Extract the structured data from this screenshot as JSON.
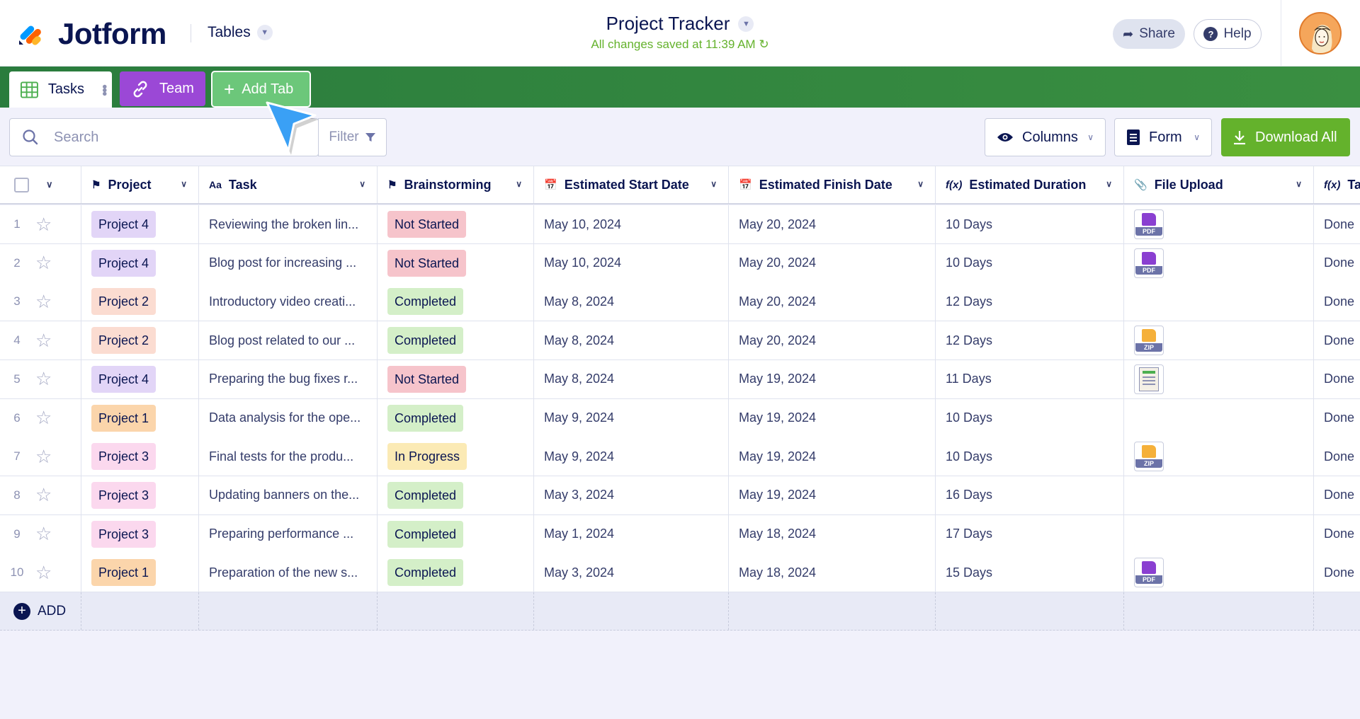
{
  "header": {
    "logo_text": "Jotform",
    "tables_label": "Tables",
    "title": "Project Tracker",
    "saved_status": "All changes saved at 11:39 AM",
    "share_label": "Share",
    "help_label": "Help"
  },
  "tabs": {
    "tasks_label": "Tasks",
    "team_label": "Team",
    "add_label": "Add Tab"
  },
  "toolbar": {
    "search_placeholder": "Search",
    "filter_label": "Filter",
    "columns_label": "Columns",
    "form_label": "Form",
    "download_label": "Download All"
  },
  "columns": {
    "project": "Project",
    "task": "Task",
    "brainstorming": "Brainstorming",
    "start": "Estimated Start Date",
    "finish": "Estimated Finish Date",
    "duration": "Estimated Duration",
    "file": "File Upload",
    "extra": "Ta"
  },
  "rows": [
    {
      "n": "1",
      "project": "Project 4",
      "task": "Reviewing the broken lin...",
      "status": "Not Started",
      "start": "May 10, 2024",
      "finish": "May 20, 2024",
      "duration": "10 Days",
      "file": "PDF",
      "extra": "Done"
    },
    {
      "n": "2",
      "project": "Project 4",
      "task": "Blog post for increasing ...",
      "status": "Not Started",
      "start": "May 10, 2024",
      "finish": "May 20, 2024",
      "duration": "10 Days",
      "file": "PDF",
      "extra": "Done"
    },
    {
      "n": "3",
      "project": "Project 2",
      "task": "Introductory video creati...",
      "status": "Completed",
      "start": "May 8, 2024",
      "finish": "May 20, 2024",
      "duration": "12 Days",
      "file": "",
      "extra": "Done"
    },
    {
      "n": "4",
      "project": "Project 2",
      "task": "Blog post related to our ...",
      "status": "Completed",
      "start": "May 8, 2024",
      "finish": "May 20, 2024",
      "duration": "12 Days",
      "file": "ZIP",
      "extra": "Done"
    },
    {
      "n": "5",
      "project": "Project 4",
      "task": "Preparing the bug fixes r...",
      "status": "Not Started",
      "start": "May 8, 2024",
      "finish": "May 19, 2024",
      "duration": "11 Days",
      "file": "IMG",
      "extra": "Done"
    },
    {
      "n": "6",
      "project": "Project 1",
      "task": "Data analysis for the ope...",
      "status": "Completed",
      "start": "May 9, 2024",
      "finish": "May 19, 2024",
      "duration": "10 Days",
      "file": "",
      "extra": "Done"
    },
    {
      "n": "7",
      "project": "Project 3",
      "task": "Final tests for the produ...",
      "status": "In Progress",
      "start": "May 9, 2024",
      "finish": "May 19, 2024",
      "duration": "10 Days",
      "file": "ZIP",
      "extra": "Done"
    },
    {
      "n": "8",
      "project": "Project 3",
      "task": "Updating banners on the...",
      "status": "Completed",
      "start": "May 3, 2024",
      "finish": "May 19, 2024",
      "duration": "16 Days",
      "file": "",
      "extra": "Done"
    },
    {
      "n": "9",
      "project": "Project 3",
      "task": "Preparing performance ...",
      "status": "Completed",
      "start": "May 1, 2024",
      "finish": "May 18, 2024",
      "duration": "17 Days",
      "file": "",
      "extra": "Done"
    },
    {
      "n": "10",
      "project": "Project 1",
      "task": "Preparation of the new s...",
      "status": "Completed",
      "start": "May 3, 2024",
      "finish": "May 18, 2024",
      "duration": "15 Days",
      "file": "PDF",
      "extra": "Done"
    }
  ],
  "add_row_label": "ADD",
  "colors": {
    "brand_green": "#64b22c",
    "tab_bar": "#2a7c3d",
    "team_purple": "#9b48d6",
    "navy": "#0a1551"
  }
}
